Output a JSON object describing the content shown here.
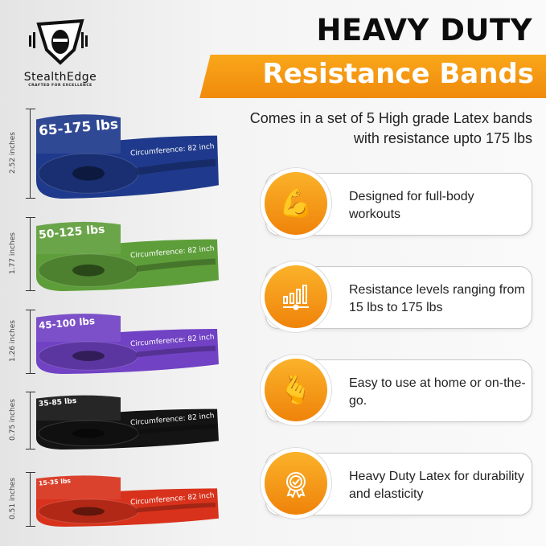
{
  "brand": {
    "name": "StealthEdge",
    "tagline": "CRAFTED FOR EXCELLENCE"
  },
  "title": "HEAVY DUTY",
  "banner": "Resistance Bands",
  "subtitle": [
    "Comes in a set of 5 High grade Latex bands",
    "with resistance upto 175 lbs"
  ],
  "bands": [
    {
      "label": "65-175 lbs",
      "circumference": "Circumference: 82 inch",
      "width": "2.52 inches",
      "color": "#1f3a8c"
    },
    {
      "label": "50-125 lbs",
      "circumference": "Circumference: 82 inch",
      "width": "1.77 inches",
      "color": "#5e9e3a"
    },
    {
      "label": "45-100 lbs",
      "circumference": "Circumference: 82 inch",
      "width": "1.26 inches",
      "color": "#7142c4"
    },
    {
      "label": "35-85 lbs",
      "circumference": "Circumference: 82 inch",
      "width": "0.75 inches",
      "color": "#141414"
    },
    {
      "label": "15-35 lbs",
      "circumference": "Circumference: 82 inch",
      "width": "0.51 inches",
      "color": "#d8321c"
    }
  ],
  "features": [
    {
      "icon": "flexed-bicep-icon",
      "text": "Designed for full-body workouts"
    },
    {
      "icon": "resistance-levels-icon",
      "text": "Resistance levels ranging from 15 lbs to 175 lbs"
    },
    {
      "icon": "snap-fingers-icon",
      "text": "Easy to use at home or on-the-go."
    },
    {
      "icon": "quality-badge-icon",
      "text": "Heavy Duty Latex for durability and elasticity"
    }
  ],
  "accent": "#f4960f"
}
